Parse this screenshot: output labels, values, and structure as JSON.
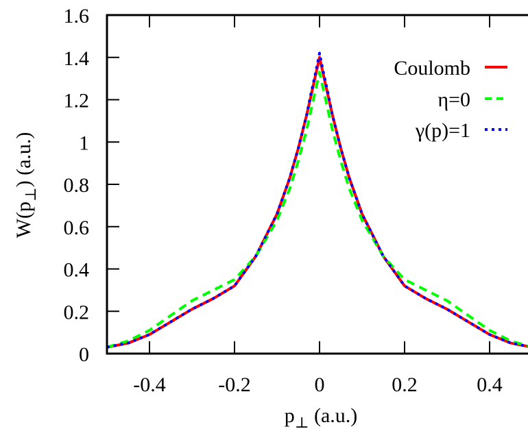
{
  "chart_data": {
    "type": "line",
    "xlabel": "p⊥ (a.u.)",
    "xlabel_main": "p",
    "xlabel_sub": "⊥",
    "xlabel_tail": " (a.u.)",
    "ylabel_main": "W(p",
    "ylabel_sub": "⊥",
    "ylabel_tail": ") (a.u.)",
    "xlim": [
      -0.5,
      0.5
    ],
    "ylim": [
      0,
      1.6
    ],
    "x_ticks": [
      -0.4,
      -0.2,
      0,
      0.2,
      0.4
    ],
    "x_tick_labels": [
      "-0.4",
      "-0.2",
      "0",
      "0.2",
      "0.4"
    ],
    "y_ticks": [
      0,
      0.2,
      0.4,
      0.6,
      0.8,
      1,
      1.2,
      1.4,
      1.6
    ],
    "y_tick_labels": [
      "0",
      "0.2",
      "0.4",
      "0.6",
      "0.8",
      "1",
      "1.2",
      "1.4",
      "1.6"
    ],
    "grid": false,
    "legend_position": "top-right",
    "series": [
      {
        "name": "Coulomb",
        "color": "#ff0000",
        "style": "solid",
        "x": [
          -0.5,
          -0.45,
          -0.4,
          -0.35,
          -0.3,
          -0.25,
          -0.2,
          -0.15,
          -0.1,
          -0.07,
          -0.05,
          -0.03,
          -0.02,
          -0.01,
          0,
          0.01,
          0.02,
          0.03,
          0.05,
          0.07,
          0.1,
          0.15,
          0.2,
          0.25,
          0.3,
          0.35,
          0.4,
          0.45,
          0.5
        ],
        "y": [
          0.03,
          0.05,
          0.09,
          0.15,
          0.21,
          0.26,
          0.32,
          0.46,
          0.66,
          0.83,
          0.97,
          1.13,
          1.22,
          1.31,
          1.4,
          1.31,
          1.22,
          1.13,
          0.97,
          0.83,
          0.66,
          0.46,
          0.32,
          0.26,
          0.21,
          0.15,
          0.09,
          0.05,
          0.03
        ]
      },
      {
        "name": "η=0",
        "color": "#00ff00",
        "style": "dashed",
        "x": [
          -0.5,
          -0.45,
          -0.4,
          -0.35,
          -0.3,
          -0.25,
          -0.2,
          -0.15,
          -0.1,
          -0.07,
          -0.05,
          -0.03,
          -0.02,
          -0.01,
          0,
          0.01,
          0.02,
          0.03,
          0.05,
          0.07,
          0.1,
          0.15,
          0.2,
          0.25,
          0.3,
          0.35,
          0.4,
          0.45,
          0.5
        ],
        "y": [
          0.03,
          0.06,
          0.11,
          0.18,
          0.25,
          0.3,
          0.35,
          0.46,
          0.63,
          0.78,
          0.91,
          1.06,
          1.15,
          1.24,
          1.33,
          1.24,
          1.15,
          1.06,
          0.91,
          0.78,
          0.63,
          0.46,
          0.35,
          0.3,
          0.25,
          0.18,
          0.11,
          0.06,
          0.03
        ]
      },
      {
        "name": "γ(p)=1",
        "color": "#0000ff",
        "style": "dotted",
        "x": [
          -0.5,
          -0.45,
          -0.4,
          -0.35,
          -0.3,
          -0.25,
          -0.2,
          -0.15,
          -0.1,
          -0.07,
          -0.05,
          -0.03,
          -0.02,
          -0.01,
          0,
          0.01,
          0.02,
          0.03,
          0.05,
          0.07,
          0.1,
          0.15,
          0.2,
          0.25,
          0.3,
          0.35,
          0.4,
          0.45,
          0.5
        ],
        "y": [
          0.03,
          0.05,
          0.09,
          0.15,
          0.21,
          0.26,
          0.32,
          0.46,
          0.66,
          0.83,
          0.97,
          1.13,
          1.23,
          1.32,
          1.42,
          1.32,
          1.23,
          1.13,
          0.97,
          0.83,
          0.66,
          0.46,
          0.32,
          0.26,
          0.21,
          0.15,
          0.09,
          0.05,
          0.03
        ]
      }
    ]
  }
}
